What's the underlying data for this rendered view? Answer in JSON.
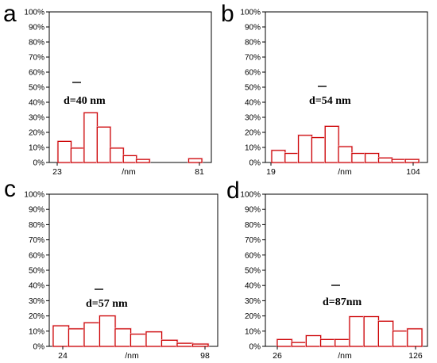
{
  "chart_data": [
    {
      "panel": "a",
      "type": "bar",
      "y_ticks": [
        "0%",
        "10%",
        "20%",
        "30%",
        "40%",
        "50%",
        "60%",
        "70%",
        "80%",
        "90%",
        "100%"
      ],
      "ylim": [
        0,
        100
      ],
      "x_tick_labels": {
        "left": "23",
        "middle": "/nm",
        "right": "81"
      },
      "annotation": "d=40 nm",
      "values": [
        14,
        9.5,
        33,
        23.5,
        9.5,
        4.5,
        2,
        0,
        0,
        0,
        2.5
      ]
    },
    {
      "panel": "b",
      "type": "bar",
      "y_ticks": [
        "0%",
        "10%",
        "20%",
        "30%",
        "40%",
        "50%",
        "60%",
        "70%",
        "80%",
        "90%",
        "100%"
      ],
      "ylim": [
        0,
        100
      ],
      "x_tick_labels": {
        "left": "19",
        "middle": "/nm",
        "right": "104"
      },
      "annotation": "d=54 nm",
      "values": [
        8,
        6,
        18,
        16.5,
        24,
        10.5,
        6,
        6,
        3,
        2,
        2
      ]
    },
    {
      "panel": "c",
      "type": "bar",
      "y_ticks": [
        "0%",
        "10%",
        "20%",
        "30%",
        "40%",
        "50%",
        "60%",
        "70%",
        "80%",
        "90%",
        "100%"
      ],
      "ylim": [
        0,
        100
      ],
      "x_tick_labels": {
        "left": "24",
        "middle": "/nm",
        "right": "98"
      },
      "annotation": "d=57 nm",
      "values": [
        13.5,
        11.5,
        15.5,
        20,
        11.5,
        8,
        9.5,
        4,
        2,
        1.5
      ]
    },
    {
      "panel": "d",
      "type": "bar",
      "y_ticks": [
        "0%",
        "10%",
        "20%",
        "30%",
        "40%",
        "50%",
        "60%",
        "70%",
        "80%",
        "90%",
        "100%"
      ],
      "ylim": [
        0,
        100
      ],
      "x_tick_labels": {
        "left": "26",
        "middle": "/nm",
        "right": "126"
      },
      "annotation": "d=87nm",
      "values": [
        4.5,
        2.5,
        7,
        4.5,
        4.5,
        19.5,
        19.5,
        16.5,
        10,
        11.5
      ]
    }
  ]
}
